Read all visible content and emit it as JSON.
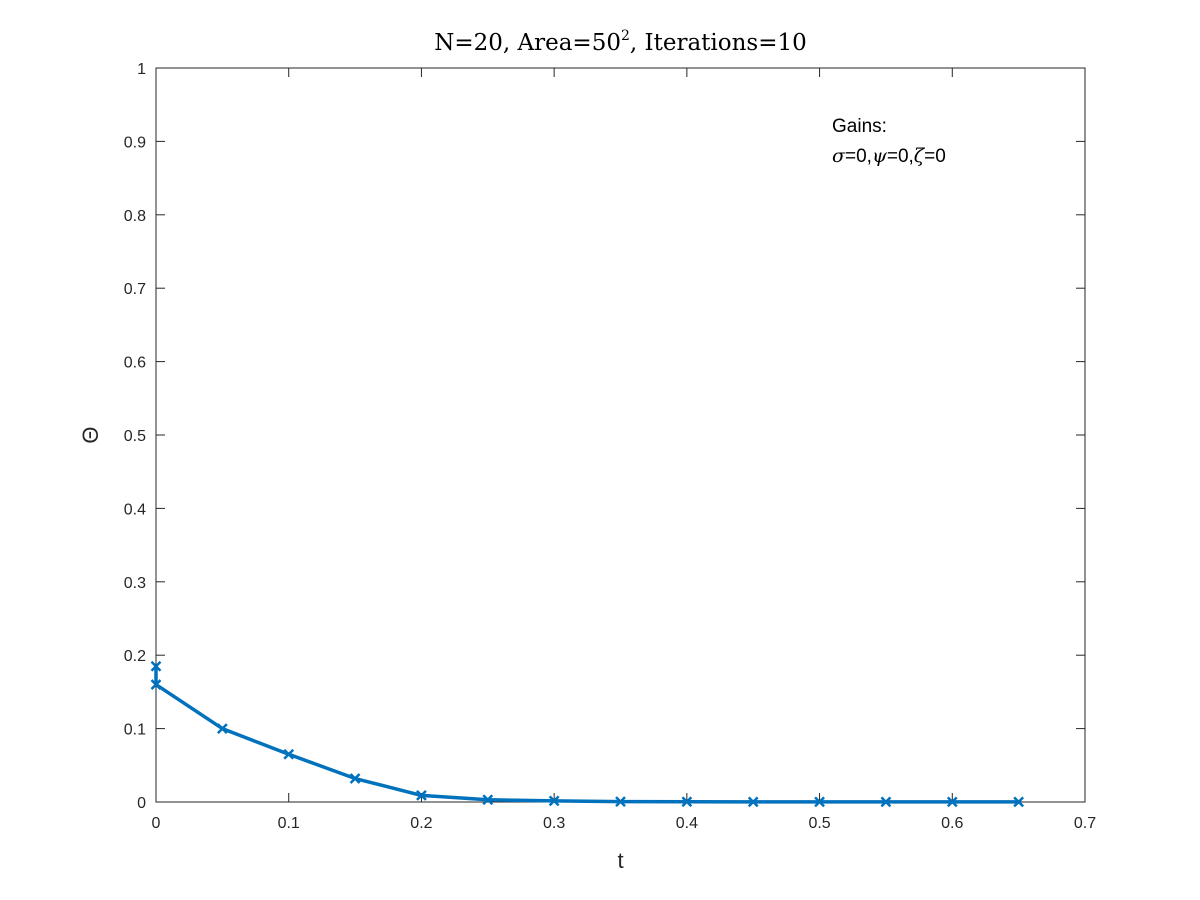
{
  "chart_data": {
    "type": "line",
    "title": {
      "prefix": "N=20, Area=50",
      "superscript": "2",
      "suffix": ", Iterations=10"
    },
    "xlabel": "t",
    "ylabel": "Θ",
    "xlim": [
      0,
      0.7
    ],
    "ylim": [
      0,
      1
    ],
    "xticks": [
      0,
      0.1,
      0.2,
      0.3,
      0.4,
      0.5,
      0.6,
      0.7
    ],
    "xtick_labels": [
      "0",
      "0.1",
      "0.2",
      "0.3",
      "0.4",
      "0.5",
      "0.6",
      "0.7"
    ],
    "yticks": [
      0,
      0.1,
      0.2,
      0.3,
      0.4,
      0.5,
      0.6,
      0.7,
      0.8,
      0.9,
      1
    ],
    "ytick_labels": [
      "0",
      "0.1",
      "0.2",
      "0.3",
      "0.4",
      "0.5",
      "0.6",
      "0.7",
      "0.8",
      "0.9",
      "1"
    ],
    "grid": false,
    "series": [
      {
        "color": "#0072BD",
        "marker": "x",
        "x": [
          0,
          0,
          0.05,
          0.1,
          0.15,
          0.2,
          0.25,
          0.3,
          0.35,
          0.4,
          0.45,
          0.5,
          0.55,
          0.6,
          0.65
        ],
        "y": [
          0.185,
          0.16,
          0.1,
          0.065,
          0.032,
          0.009,
          0.003,
          0.0015,
          0.0005,
          0.0003,
          0.0002,
          0.0002,
          0.0001,
          0.0001,
          0.0001
        ]
      }
    ],
    "annotation": {
      "line1": "Gains:",
      "sigma_symbol": "σ",
      "sigma_value": "=0,",
      "psi_symbol": "ψ",
      "psi_value": "=0,",
      "zeta_symbol": "ζ",
      "zeta_value": "=0"
    }
  }
}
